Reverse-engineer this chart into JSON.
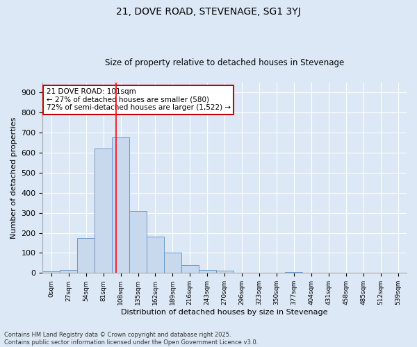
{
  "title": "21, DOVE ROAD, STEVENAGE, SG1 3YJ",
  "subtitle": "Size of property relative to detached houses in Stevenage",
  "xlabel": "Distribution of detached houses by size in Stevenage",
  "ylabel": "Number of detached properties",
  "bin_labels": [
    "0sqm",
    "27sqm",
    "54sqm",
    "81sqm",
    "108sqm",
    "135sqm",
    "162sqm",
    "189sqm",
    "216sqm",
    "243sqm",
    "270sqm",
    "296sqm",
    "323sqm",
    "350sqm",
    "377sqm",
    "404sqm",
    "431sqm",
    "458sqm",
    "485sqm",
    "512sqm",
    "539sqm"
  ],
  "bar_values": [
    8,
    15,
    175,
    620,
    675,
    310,
    180,
    100,
    40,
    15,
    12,
    0,
    0,
    0,
    5,
    0,
    0,
    0,
    0,
    0,
    0
  ],
  "bar_color": "#c9d9ed",
  "bar_edge_color": "#5a8fc4",
  "ylim": [
    0,
    950
  ],
  "yticks": [
    0,
    100,
    200,
    300,
    400,
    500,
    600,
    700,
    800,
    900
  ],
  "red_line_x": 3.74,
  "annotation_text": "21 DOVE ROAD: 101sqm\n← 27% of detached houses are smaller (580)\n72% of semi-detached houses are larger (1,522) →",
  "annotation_box_color": "#ffffff",
  "annotation_box_edge": "#cc0000",
  "bg_color": "#dce8f5",
  "grid_color": "#ffffff",
  "footer_line1": "Contains HM Land Registry data © Crown copyright and database right 2025.",
  "footer_line2": "Contains public sector information licensed under the Open Government Licence v3.0."
}
